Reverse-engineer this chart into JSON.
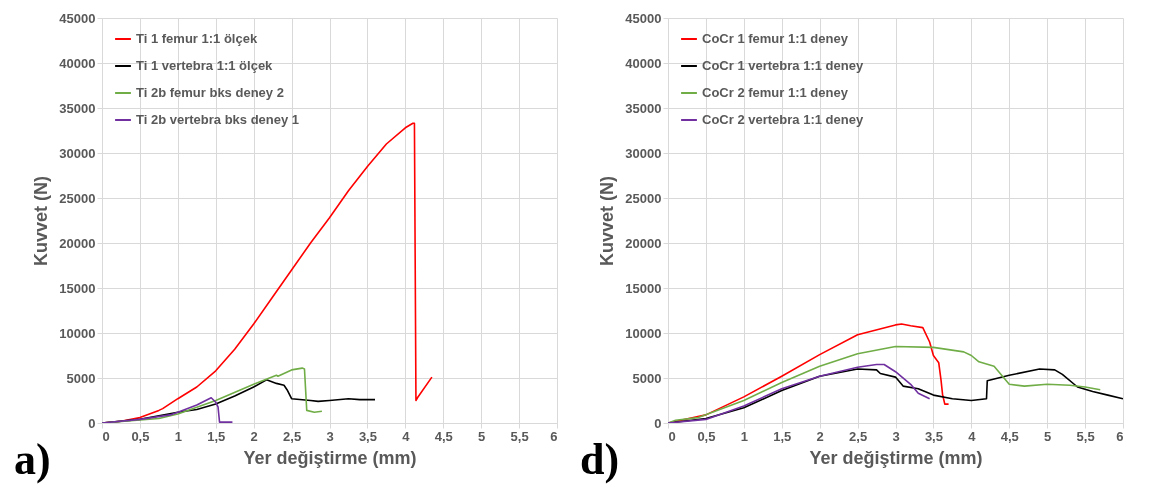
{
  "chart_data": [
    {
      "type": "line",
      "xlabel": "Yer değiştirme  (mm)",
      "ylabel": "Kuvvet  (N)",
      "annotations": [
        "a)"
      ],
      "xlim": [
        0,
        6
      ],
      "ylim": [
        0,
        45000
      ],
      "xticks": [
        0,
        {
          "value": 0.5,
          "label": "0,5"
        },
        1,
        {
          "value": 1.5,
          "label": "1,5"
        },
        2,
        {
          "value": 2.5,
          "label": "2,5"
        },
        3,
        {
          "value": 3.5,
          "label": "3,5"
        },
        4,
        {
          "value": 4.5,
          "label": "4,5"
        },
        5,
        {
          "value": 5.5,
          "label": "5,5"
        },
        6
      ],
      "yticks": [
        0,
        5000,
        10000,
        15000,
        20000,
        25000,
        30000,
        35000,
        40000,
        45000
      ],
      "grid": true,
      "legend": "top left",
      "series": [
        {
          "name": "Ti 1 femur 1:1 ölçek",
          "color": "#ff0000",
          "x": [
            0,
            0.25,
            0.5,
            0.75,
            0.8,
            1,
            1.25,
            1.5,
            1.75,
            2,
            2.25,
            2.5,
            2.75,
            3,
            3.25,
            3.5,
            3.75,
            4,
            4.1,
            4.12,
            4.14,
            4.16,
            4.35
          ],
          "values": [
            0,
            200,
            600,
            1400,
            1600,
            2700,
            4000,
            5800,
            8200,
            11000,
            14000,
            17000,
            20000,
            22800,
            25800,
            28500,
            31000,
            32800,
            33300,
            33300,
            2500,
            2800,
            5100
          ]
        },
        {
          "name": "Ti 1 vertebra 1:1 ölçek",
          "color": "#000000",
          "x": [
            0,
            0.5,
            1,
            1.25,
            1.5,
            1.75,
            2,
            2.17,
            2.3,
            2.4,
            2.44,
            2.5,
            2.75,
            2.85,
            3,
            3.25,
            3.4,
            3.6
          ],
          "values": [
            0,
            400,
            1200,
            1500,
            2100,
            3000,
            4000,
            4800,
            4400,
            4200,
            3700,
            2700,
            2500,
            2400,
            2500,
            2700,
            2600,
            2600
          ]
        },
        {
          "name": "Ti 2b femur bks deney 2",
          "color": "#70ad47",
          "x": [
            0,
            0.75,
            1,
            1.5,
            2,
            2.3,
            2.32,
            2.5,
            2.64,
            2.67,
            2.7,
            2.8,
            2.9
          ],
          "values": [
            0,
            500,
            1000,
            2500,
            4300,
            5300,
            5200,
            5900,
            6100,
            6000,
            1400,
            1200,
            1300
          ]
        },
        {
          "name": "Ti 2b vertebra bks deney 1",
          "color": "#7030a0",
          "x": [
            0,
            0.5,
            0.9,
            1,
            1.25,
            1.44,
            1.5,
            1.53,
            1.55,
            1.72
          ],
          "values": [
            0,
            400,
            900,
            1200,
            2000,
            2800,
            2300,
            1800,
            100,
            100
          ]
        }
      ]
    },
    {
      "type": "line",
      "xlabel": "Yer değiştirme  (mm)",
      "ylabel": "Kuvvet  (N)",
      "annotations": [
        "d)"
      ],
      "xlim": [
        0,
        6
      ],
      "ylim": [
        0,
        45000
      ],
      "xticks": [
        0,
        {
          "value": 0.5,
          "label": "0,5"
        },
        1,
        {
          "value": 1.5,
          "label": "1,5"
        },
        2,
        {
          "value": 2.5,
          "label": "2,5"
        },
        3,
        {
          "value": 3.5,
          "label": "3,5"
        },
        4,
        {
          "value": 4.5,
          "label": "4,5"
        },
        5,
        {
          "value": 5.5,
          "label": "5,5"
        },
        6
      ],
      "yticks": [
        0,
        5000,
        10000,
        15000,
        20000,
        25000,
        30000,
        35000,
        40000,
        45000
      ],
      "grid": true,
      "legend": "top left",
      "series": [
        {
          "name": "CoCr 1 femur 1:1 deney",
          "color": "#ff0000",
          "x": [
            0,
            0.5,
            1,
            1.5,
            2,
            2.5,
            3,
            3.08,
            3.2,
            3.36,
            3.45,
            3.5,
            3.57,
            3.6,
            3.62,
            3.65,
            3.7
          ],
          "values": [
            0,
            900,
            2900,
            5200,
            7600,
            9800,
            10900,
            11000,
            10800,
            10600,
            9000,
            7500,
            6700,
            4800,
            3200,
            2100,
            2100
          ]
        },
        {
          "name": "CoCr 1 vertebra 1:1 deney",
          "color": "#000000",
          "x": [
            0,
            0.5,
            1,
            1.5,
            2,
            2.5,
            2.75,
            2.8,
            3,
            3.1,
            3.3,
            3.5,
            3.75,
            4,
            4.2,
            4.21,
            4.5,
            4.9,
            5.1,
            5.2,
            5.4,
            5.6,
            5.8,
            6
          ],
          "values": [
            0,
            500,
            1700,
            3600,
            5200,
            6000,
            5900,
            5500,
            5100,
            4100,
            3800,
            3100,
            2700,
            2500,
            2700,
            4700,
            5300,
            6000,
            5900,
            5400,
            4000,
            3500,
            3100,
            2700
          ]
        },
        {
          "name": "CoCr 2 femur 1:1 deney",
          "color": "#70ad47",
          "x": [
            0,
            0.1,
            0.4,
            1,
            1.5,
            2,
            2.5,
            3,
            3.5,
            3.9,
            4,
            4.1,
            4.3,
            4.4,
            4.5,
            4.7,
            5,
            5.3,
            5.5,
            5.7
          ],
          "values": [
            0,
            300,
            600,
            2500,
            4500,
            6300,
            7700,
            8500,
            8400,
            7900,
            7500,
            6800,
            6300,
            5300,
            4300,
            4100,
            4300,
            4200,
            4000,
            3700
          ]
        },
        {
          "name": "CoCr 2 vertebra 1:1 deney",
          "color": "#7030a0",
          "x": [
            0,
            0.5,
            1,
            1.5,
            2,
            2.5,
            2.75,
            2.85,
            3,
            3.2,
            3.3,
            3.45
          ],
          "values": [
            0,
            400,
            1900,
            3800,
            5200,
            6200,
            6500,
            6500,
            5700,
            4300,
            3300,
            2700
          ]
        }
      ]
    }
  ]
}
